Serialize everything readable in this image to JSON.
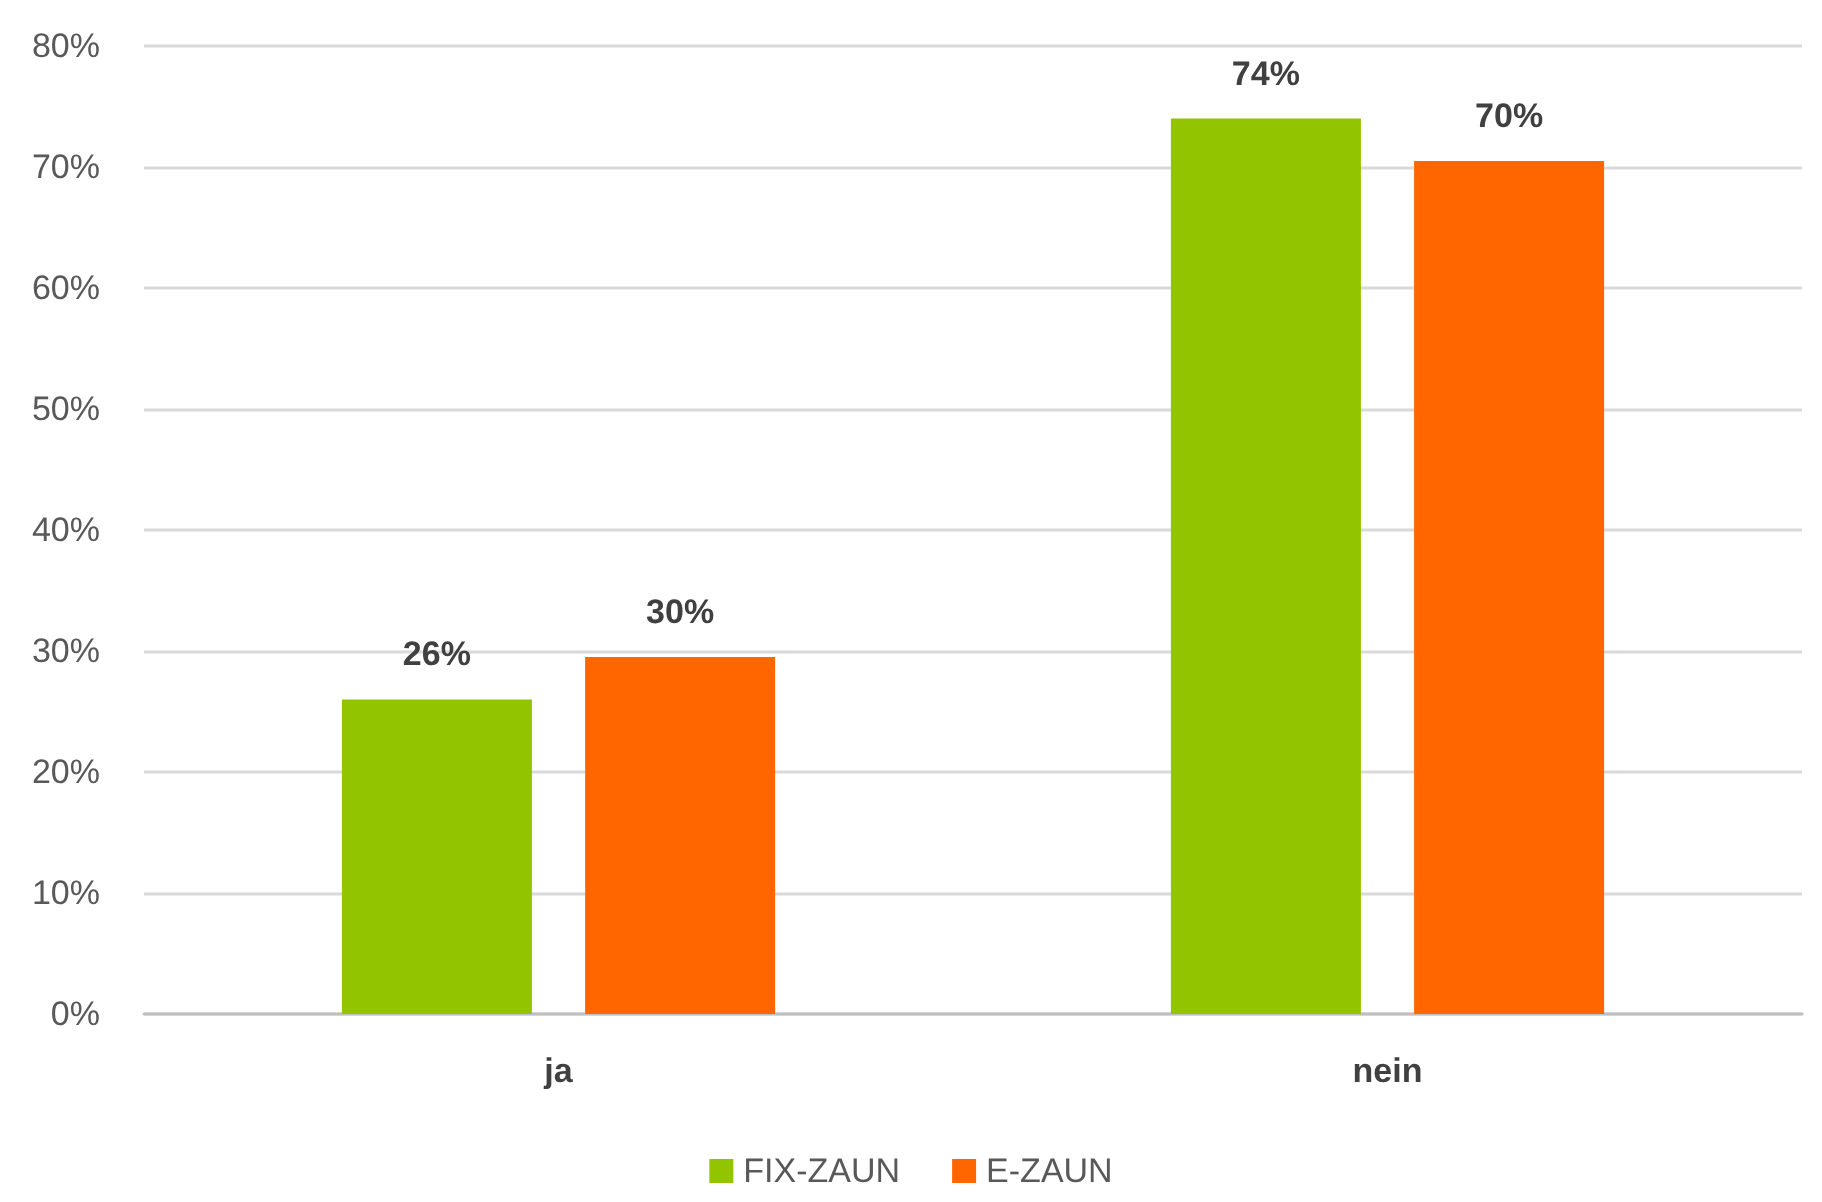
{
  "chart_data": {
    "type": "bar",
    "categories": [
      "ja",
      "nein"
    ],
    "series": [
      {
        "name": "FIX-ZAUN",
        "color": "#92c400",
        "values": [
          26,
          74
        ],
        "value_labels": [
          "26%",
          "74%"
        ]
      },
      {
        "name": "E-ZAUN",
        "color": "#ff6600",
        "values": [
          29.5,
          70.5
        ],
        "value_labels": [
          "30%",
          "70%"
        ]
      }
    ],
    "ylim": [
      0,
      80
    ],
    "yticks": [
      {
        "value": 0,
        "label": "0%"
      },
      {
        "value": 10,
        "label": "10%"
      },
      {
        "value": 20,
        "label": "20%"
      },
      {
        "value": 30,
        "label": "30%"
      },
      {
        "value": 40,
        "label": "40%"
      },
      {
        "value": 50,
        "label": "50%"
      },
      {
        "value": 60,
        "label": "60%"
      },
      {
        "value": 70,
        "label": "70%"
      },
      {
        "value": 80,
        "label": "80%"
      }
    ],
    "grid": "y",
    "legend": "bottom"
  }
}
